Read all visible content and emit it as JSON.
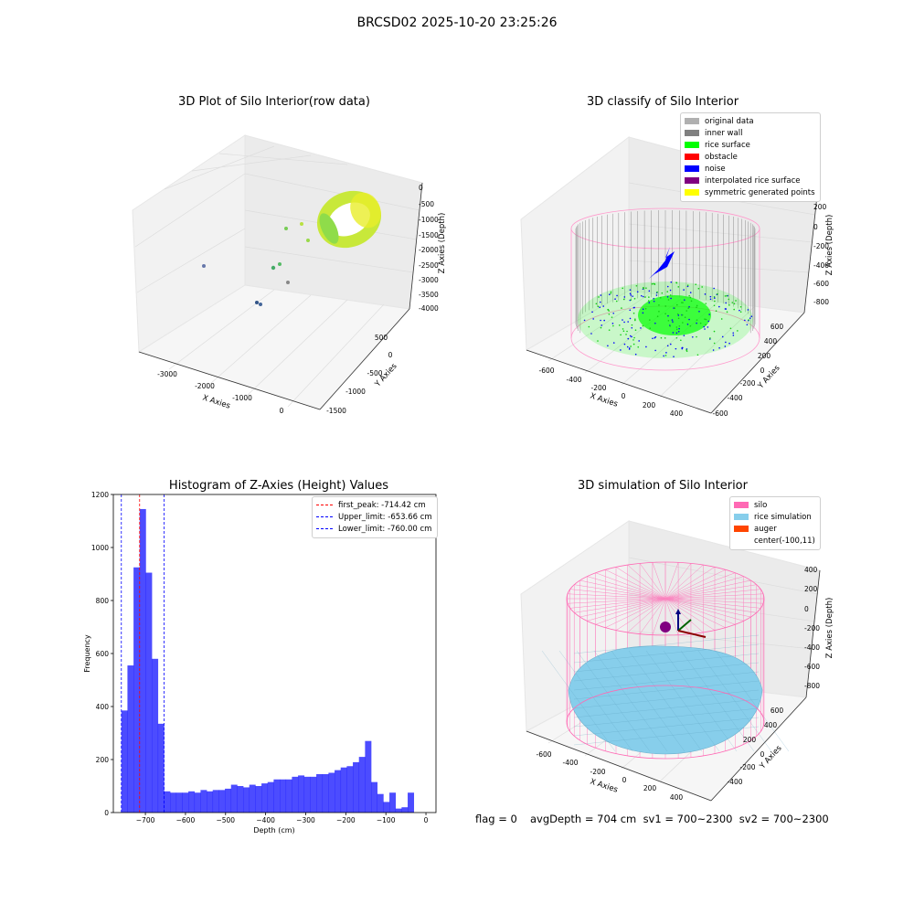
{
  "figure": {
    "suptitle": "BRCSD02 2025-10-20 23:25:26",
    "footer": {
      "flag": "flag = 0",
      "stats": "avgDepth = 704 cm  sv1 = 700~2300  sv2 = 700~2300"
    }
  },
  "panels": {
    "raw": {
      "title": "3D Plot of Silo Interior(row data)",
      "xlabel": "X Axies",
      "ylabel": "Y Axies",
      "zlabel": "Z Axies (Depth)",
      "xticks": [
        "-3000",
        "-2000",
        "-1000",
        "0"
      ],
      "yticks": [
        "500",
        "0",
        "-500",
        "-1000",
        "-1500"
      ],
      "zticks": [
        "0",
        "-500",
        "-1000",
        "-1500",
        "-2000",
        "-2500",
        "-3000",
        "-3500",
        "-4000"
      ]
    },
    "classify": {
      "title": "3D classify of Silo Interior",
      "xlabel": "X Axies",
      "ylabel": "Y Axies",
      "zlabel": "Z Axies (Depth)",
      "xticks": [
        "-600",
        "-400",
        "-200",
        "0",
        "200",
        "400"
      ],
      "yticks": [
        "600",
        "400",
        "200",
        "0",
        "-200",
        "-400",
        "-600"
      ],
      "zticks": [
        "200",
        "0",
        "-200",
        "-400",
        "-600",
        "-800"
      ],
      "legend": [
        {
          "label": "original data",
          "color": "#b0b0b0"
        },
        {
          "label": "inner wall",
          "color": "#808080"
        },
        {
          "label": "rice surface",
          "color": "#00ff00"
        },
        {
          "label": "obstacle",
          "color": "#ff0000"
        },
        {
          "label": "noise",
          "color": "#0000ff"
        },
        {
          "label": "interpolated rice surface",
          "color": "#800080"
        },
        {
          "label": "symmetric generated points",
          "color": "#ffff00"
        }
      ]
    },
    "simulation": {
      "title": "3D simulation of Silo Interior",
      "xlabel": "X Axies",
      "ylabel": "Y Axies",
      "zlabel": "Z Axies (Depth)",
      "xticks": [
        "-600",
        "-400",
        "-200",
        "0",
        "200",
        "400"
      ],
      "yticks": [
        "600",
        "400",
        "200",
        "0",
        "-200",
        "-400"
      ],
      "zticks": [
        "400",
        "200",
        "0",
        "-200",
        "-400",
        "-600",
        "-800"
      ],
      "legend": [
        {
          "label": "silo",
          "color": "#ff69b4"
        },
        {
          "label": "rice simulation",
          "color": "#87ceeb"
        },
        {
          "label": "auger",
          "color": "#ff4500"
        },
        {
          "label": "center(-100,11)",
          "color": "#ffffff"
        }
      ]
    }
  },
  "chart_data": {
    "type": "bar",
    "title": "Histogram of Z-Axies (Height) Values",
    "xlabel": "Depth (cm)",
    "ylabel": "Frequency",
    "xlim": [
      -780,
      25
    ],
    "ylim": [
      0,
      1200
    ],
    "xticks": [
      -700,
      -600,
      -500,
      -400,
      -300,
      -200,
      -100,
      0
    ],
    "yticks": [
      0,
      200,
      400,
      600,
      800,
      1000,
      1200
    ],
    "bin_width": 15.2,
    "bin_starts": [
      -760.0,
      -744.8,
      -729.6,
      -714.4,
      -699.2,
      -684.0,
      -668.8,
      -653.6,
      -638.4,
      -623.2,
      -608.0,
      -592.8,
      -577.6,
      -562.4,
      -547.2,
      -532.0,
      -516.8,
      -501.6,
      -486.4,
      -471.2,
      -456.0,
      -440.8,
      -425.6,
      -410.4,
      -395.2,
      -380.0,
      -364.8,
      -349.6,
      -334.4,
      -319.2,
      -304.0,
      -288.8,
      -273.6,
      -258.4,
      -243.2,
      -228.0,
      -212.8,
      -197.6,
      -182.4,
      -167.2,
      -152.0,
      -136.8,
      -121.6,
      -106.4,
      -91.2,
      -76.0,
      -60.8,
      -45.6,
      -30.4,
      -15.2
    ],
    "values": [
      385,
      555,
      925,
      1145,
      905,
      580,
      335,
      80,
      75,
      75,
      75,
      80,
      75,
      85,
      80,
      85,
      85,
      90,
      105,
      100,
      95,
      105,
      100,
      110,
      115,
      125,
      125,
      125,
      135,
      140,
      135,
      135,
      145,
      145,
      150,
      160,
      170,
      175,
      190,
      210,
      270,
      115,
      70,
      40,
      75,
      15,
      20,
      75,
      0,
      0
    ],
    "color": "#0000ff",
    "vlines": [
      {
        "label": "first_peak: -714.42 cm",
        "x": -714.42,
        "color": "#ff0000"
      },
      {
        "label": "Upper_limit: -653.66 cm",
        "x": -653.66,
        "color": "#0000ff"
      },
      {
        "label": "Lower_limit: -760.00 cm",
        "x": -760.0,
        "color": "#0000ff"
      }
    ],
    "legend_position": "top-right",
    "grid": false
  }
}
